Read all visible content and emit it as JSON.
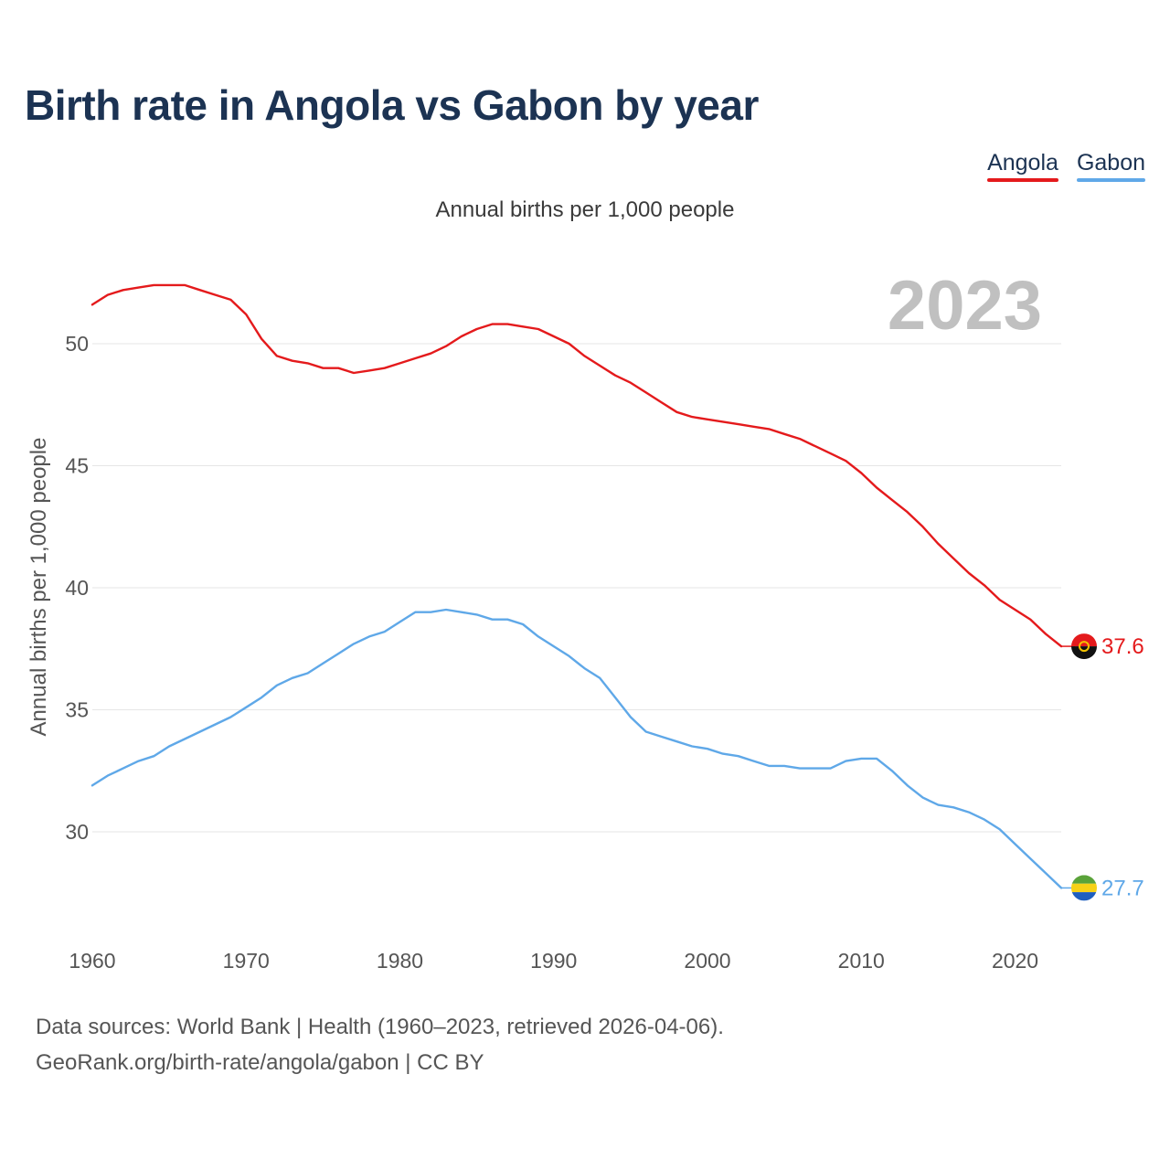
{
  "header": {
    "title": "Birth rate in Angola vs Gabon by year"
  },
  "legend": [
    {
      "name": "Angola",
      "color": "#e41a1c"
    },
    {
      "name": "Gabon",
      "color": "#5fa8e8"
    }
  ],
  "footer": {
    "line1": "Data sources: World Bank | Health (1960–2023, retrieved 2026-04-06).",
    "line2": "GeoRank.org/birth-rate/angola/gabon | CC BY"
  },
  "chart_data": {
    "type": "line",
    "title": "Birth rate in Angola vs Gabon by year",
    "subtitle": "Annual births per 1,000 people",
    "xlabel": "",
    "ylabel": "Annual births per 1,000 people",
    "year_label": "2023",
    "xlim": [
      1960,
      2023
    ],
    "ylim": [
      26,
      53
    ],
    "x_ticks": [
      1960,
      1970,
      1980,
      1990,
      2000,
      2010,
      2020
    ],
    "y_ticks": [
      30,
      35,
      40,
      45,
      50
    ],
    "grid": true,
    "legend_position": "top-right",
    "x": [
      1960,
      1961,
      1962,
      1963,
      1964,
      1965,
      1966,
      1967,
      1968,
      1969,
      1970,
      1971,
      1972,
      1973,
      1974,
      1975,
      1976,
      1977,
      1978,
      1979,
      1980,
      1981,
      1982,
      1983,
      1984,
      1985,
      1986,
      1987,
      1988,
      1989,
      1990,
      1991,
      1992,
      1993,
      1994,
      1995,
      1996,
      1997,
      1998,
      1999,
      2000,
      2001,
      2002,
      2003,
      2004,
      2005,
      2006,
      2007,
      2008,
      2009,
      2010,
      2011,
      2012,
      2013,
      2014,
      2015,
      2016,
      2017,
      2018,
      2019,
      2020,
      2021,
      2022,
      2023
    ],
    "series": [
      {
        "name": "Angola",
        "color": "#e41a1c",
        "end_label": "37.6",
        "values": [
          51.6,
          52.0,
          52.2,
          52.3,
          52.4,
          52.4,
          52.4,
          52.2,
          52.0,
          51.8,
          51.2,
          50.2,
          49.5,
          49.3,
          49.2,
          49.0,
          49.0,
          48.8,
          48.9,
          49.0,
          49.2,
          49.4,
          49.6,
          49.9,
          50.3,
          50.6,
          50.8,
          50.8,
          50.7,
          50.6,
          50.3,
          50.0,
          49.5,
          49.1,
          48.7,
          48.4,
          48.0,
          47.6,
          47.2,
          47.0,
          46.9,
          46.8,
          46.7,
          46.6,
          46.5,
          46.3,
          46.1,
          45.8,
          45.5,
          45.2,
          44.7,
          44.1,
          43.6,
          43.1,
          42.5,
          41.8,
          41.2,
          40.6,
          40.1,
          39.5,
          39.1,
          38.7,
          38.1,
          37.6
        ]
      },
      {
        "name": "Gabon",
        "color": "#5fa8e8",
        "end_label": "27.7",
        "values": [
          31.9,
          32.3,
          32.6,
          32.9,
          33.1,
          33.5,
          33.8,
          34.1,
          34.4,
          34.7,
          35.1,
          35.5,
          36.0,
          36.3,
          36.5,
          36.9,
          37.3,
          37.7,
          38.0,
          38.2,
          38.6,
          39.0,
          39.0,
          39.1,
          39.0,
          38.9,
          38.7,
          38.7,
          38.5,
          38.0,
          37.6,
          37.2,
          36.7,
          36.3,
          35.5,
          34.7,
          34.1,
          33.9,
          33.7,
          33.5,
          33.4,
          33.2,
          33.1,
          32.9,
          32.7,
          32.7,
          32.6,
          32.6,
          32.6,
          32.9,
          33.0,
          33.0,
          32.5,
          31.9,
          31.4,
          31.1,
          31.0,
          30.8,
          30.5,
          30.1,
          29.5,
          28.9,
          28.3,
          27.7
        ]
      }
    ]
  }
}
